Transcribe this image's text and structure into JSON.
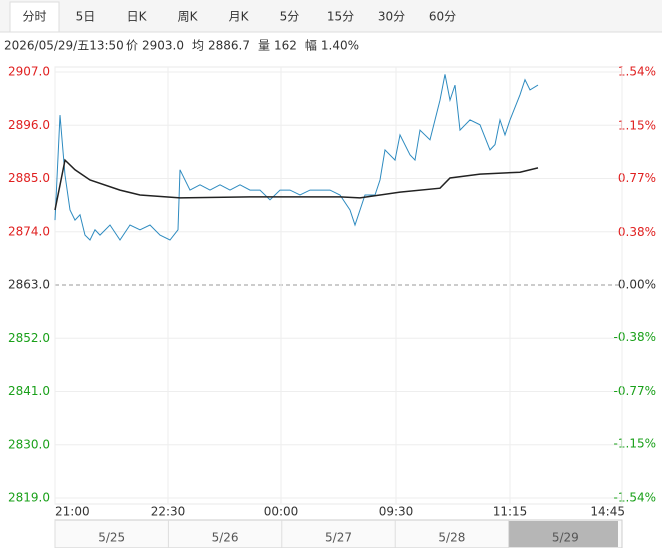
{
  "tabs": [
    "分时",
    "5日",
    "日K",
    "周K",
    "月K",
    "5分",
    "15分",
    "30分",
    "60分"
  ],
  "active_tab": 0,
  "info": {
    "datetime": "2026/05/29/五13:50",
    "items": [
      {
        "label": "价",
        "value": "2903.0"
      },
      {
        "label": "均",
        "value": "2886.7"
      },
      {
        "label": "量",
        "value": "162"
      },
      {
        "label": "幅",
        "value": "1.40%"
      }
    ]
  },
  "navigator": {
    "dates": [
      "5/25",
      "5/26",
      "5/27",
      "5/28",
      "5/29"
    ],
    "selected": 4
  },
  "chart_data": {
    "type": "line",
    "baseline": 2863,
    "up_color": "#e02020",
    "down_color": "#1aa01a",
    "flat_color": "#333333",
    "xlim": [
      0,
      567
    ],
    "xticks": [
      {
        "value": 0,
        "label": "21:00"
      },
      {
        "value": 113,
        "label": "22:30"
      },
      {
        "value": 226,
        "label": "00:00"
      },
      {
        "value": 341,
        "label": "09:30"
      },
      {
        "value": 455,
        "label": "11:15"
      },
      {
        "value": 567,
        "label": "14:45"
      }
    ],
    "ylim": [
      2819,
      2907
    ],
    "yticks": [
      {
        "value": 2907,
        "label": "2907.0"
      },
      {
        "value": 2896,
        "label": "2896.0"
      },
      {
        "value": 2885,
        "label": "2885.0"
      },
      {
        "value": 2874,
        "label": "2874.0"
      },
      {
        "value": 2863,
        "label": "2863.0"
      },
      {
        "value": 2852,
        "label": "2852.0"
      },
      {
        "value": 2841,
        "label": "2841.0"
      },
      {
        "value": 2830,
        "label": "2830.0"
      },
      {
        "value": 2819,
        "label": "2819.0"
      }
    ],
    "y2lim": [
      -1.54,
      1.54
    ],
    "y2ticks": [
      {
        "value": 1.54,
        "label": "1.54%"
      },
      {
        "value": 1.15,
        "label": "1.15%"
      },
      {
        "value": 0.77,
        "label": "0.77%"
      },
      {
        "value": 0.38,
        "label": "0.38%"
      },
      {
        "value": 0,
        "label": "0.00%"
      },
      {
        "value": -0.38,
        "label": "-0.38%"
      },
      {
        "value": -0.77,
        "label": "-0.77%"
      },
      {
        "value": -1.15,
        "label": "-1.15%"
      },
      {
        "value": -1.54,
        "label": "-1.54%"
      }
    ],
    "grid": true,
    "series": [
      {
        "color": "#2e8bc0",
        "x": [
          0,
          5,
          10,
          15,
          20,
          25,
          30,
          35,
          40,
          45,
          55,
          65,
          75,
          85,
          95,
          105,
          115,
          123,
          125,
          135,
          145,
          155,
          165,
          175,
          185,
          195,
          205,
          215,
          225,
          235,
          245,
          255,
          265,
          275,
          285,
          295,
          300,
          310,
          320,
          325,
          330,
          340,
          345,
          355,
          360,
          365,
          375,
          385,
          390,
          395,
          400,
          405,
          415,
          425,
          435,
          440,
          445,
          450,
          455,
          465,
          470,
          475,
          483
        ],
        "values": [
          2876.4,
          2898.1,
          2885.7,
          2878.5,
          2876.4,
          2877.5,
          2873.3,
          2872.3,
          2874.4,
          2873.3,
          2875.4,
          2872.3,
          2875.4,
          2874.4,
          2875.4,
          2873.3,
          2872.3,
          2874.4,
          2886.8,
          2882.6,
          2883.7,
          2882.6,
          2883.7,
          2882.6,
          2883.7,
          2882.6,
          2882.6,
          2880.6,
          2882.6,
          2882.6,
          2881.6,
          2882.6,
          2882.6,
          2882.6,
          2881.6,
          2878.5,
          2875.4,
          2881.6,
          2881.6,
          2884.7,
          2890.9,
          2888.8,
          2894.0,
          2889.9,
          2888.8,
          2895.0,
          2893.0,
          2901.2,
          2906.5,
          2901.2,
          2904.3,
          2895.0,
          2897.1,
          2896.1,
          2890.9,
          2892.0,
          2897.1,
          2894.0,
          2897.1,
          2902.3,
          2905.4,
          2903.3,
          2904.3
        ]
      },
      {
        "color": "#222222",
        "x": [
          0,
          10,
          20,
          35,
          65,
          85,
          125,
          195,
          285,
          305,
          325,
          345,
          385,
          395,
          425,
          465,
          483
        ],
        "values": [
          2878.5,
          2888.8,
          2886.8,
          2884.7,
          2882.6,
          2881.6,
          2881.0,
          2881.2,
          2881.2,
          2881.0,
          2881.6,
          2882.2,
          2883.0,
          2885.1,
          2885.9,
          2886.3,
          2887.2
        ]
      }
    ]
  }
}
